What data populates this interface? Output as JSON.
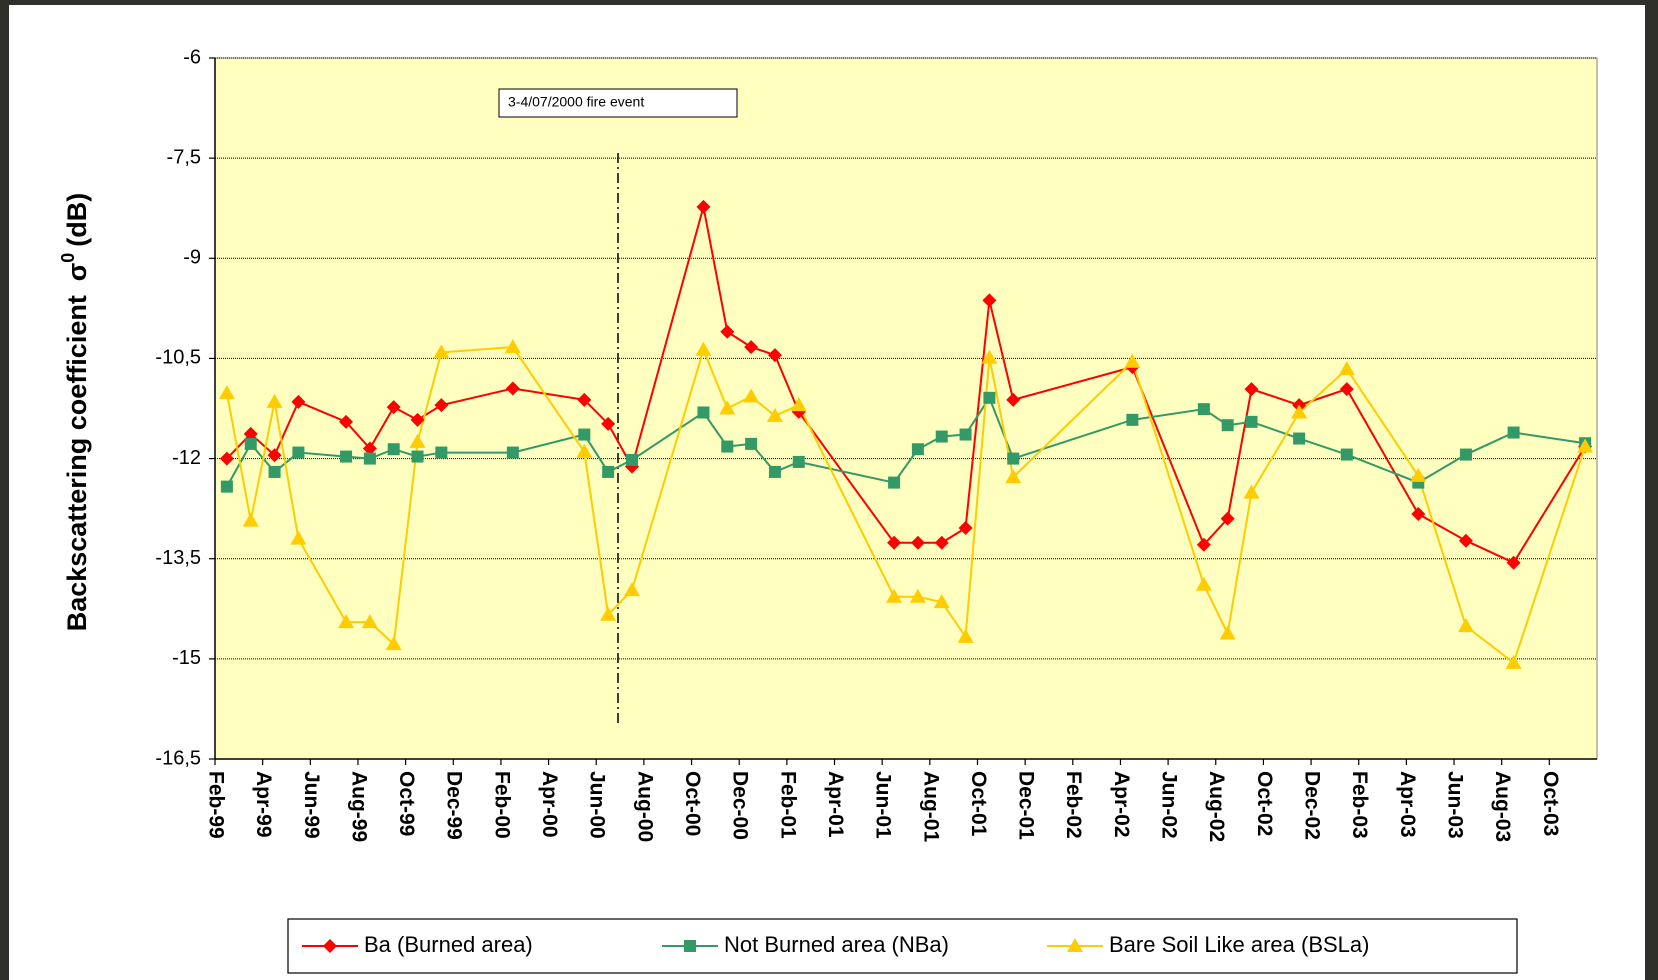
{
  "chart_data": {
    "type": "line",
    "y_label": [
      "Backscattering coefficient",
      "σ",
      "0",
      "(dB)"
    ],
    "annotation": "3-4/07/2000 fire event",
    "x": [
      "Feb-99",
      "Mar-99",
      "Apr-99",
      "May-99",
      "Jul-99",
      "Aug-99",
      "Sep-99",
      "Oct-99",
      "Nov-99",
      "Feb-00",
      "May-00",
      "Jun-00",
      "Jul-00",
      "Oct-00",
      "Nov-00",
      "Dec-00",
      "Jan-01",
      "Feb-01",
      "Jun-01",
      "Jul-01",
      "Aug-01",
      "Sep-01",
      "Oct-01",
      "Nov-01",
      "Apr-02",
      "Jul-02",
      "Aug-02",
      "Sep-02",
      "Nov-02",
      "Jan-03",
      "Apr-03",
      "Jun-03",
      "Aug-03",
      "Nov-03"
    ],
    "series": [
      {
        "name": "Ba (Burned area)",
        "color": "#ff0000",
        "marker": "diamond",
        "values": [
          -12.0,
          -11.63,
          -11.95,
          -11.15,
          -11.45,
          -11.85,
          -11.23,
          -11.42,
          -11.2,
          -10.95,
          -11.12,
          -11.48,
          -12.12,
          -8.23,
          -10.1,
          -10.33,
          -10.45,
          -11.3,
          -13.26,
          -13.26,
          -13.26,
          -13.04,
          -9.63,
          -11.12,
          -10.63,
          -13.29,
          -12.9,
          -10.96,
          -11.2,
          -10.96,
          -12.83,
          -13.23,
          -13.56,
          -11.82
        ]
      },
      {
        "name": "Not Burned area (NBa)",
        "color": "#339966",
        "marker": "square",
        "values": [
          -12.42,
          -11.78,
          -12.2,
          -11.91,
          -11.97,
          -12.0,
          -11.86,
          -11.97,
          -11.91,
          -11.91,
          -11.64,
          -12.2,
          -12.02,
          -11.31,
          -11.82,
          -11.78,
          -12.2,
          -12.05,
          -12.36,
          -11.86,
          -11.67,
          -11.64,
          -11.09,
          -12.0,
          -11.42,
          -11.26,
          -11.5,
          -11.45,
          -11.7,
          -11.94,
          -12.36,
          -11.94,
          -11.61,
          -11.77
        ]
      },
      {
        "name": "Bare Soil Like area (BSLa)",
        "color": "#ffcc00",
        "marker": "triangle",
        "values": [
          -11.02,
          -12.93,
          -11.15,
          -13.2,
          -14.45,
          -14.45,
          -14.78,
          -11.75,
          -10.41,
          -10.33,
          -11.9,
          -14.34,
          -13.97,
          -10.37,
          -11.25,
          -11.07,
          -11.36,
          -11.2,
          -14.07,
          -14.07,
          -14.15,
          -14.67,
          -10.49,
          -12.28,
          -10.55,
          -13.89,
          -14.62,
          -12.51,
          -11.31,
          -10.66,
          -12.26,
          -14.51,
          -15.06,
          -11.82
        ]
      }
    ],
    "xlim": [
      "Feb-99",
      "Dec-03"
    ],
    "xticks": [
      "Feb-99",
      "Apr-99",
      "Jun-99",
      "Aug-99",
      "Oct-99",
      "Dec-99",
      "Feb-00",
      "Apr-00",
      "Jun-00",
      "Aug-00",
      "Oct-00",
      "Dec-00",
      "Feb-01",
      "Apr-01",
      "Jun-01",
      "Aug-01",
      "Oct-01",
      "Dec-01",
      "Feb-02",
      "Apr-02",
      "Jun-02",
      "Aug-02",
      "Oct-02",
      "Dec-02",
      "Feb-03",
      "Apr-03",
      "Jun-03",
      "Aug-03",
      "Oct-03"
    ],
    "ylim": [
      -16.5,
      -6
    ],
    "yticks": [
      -6,
      {
        "value": -7.5,
        "label": "-7,5"
      },
      -9,
      {
        "value": -10.5,
        "label": "-10,5"
      },
      -12,
      {
        "value": -13.5,
        "label": "-13,5"
      },
      -15,
      {
        "value": -16.5,
        "label": "-16,5"
      }
    ],
    "grid": true,
    "legend": "bottom",
    "plot_background": "#ffffc0"
  }
}
